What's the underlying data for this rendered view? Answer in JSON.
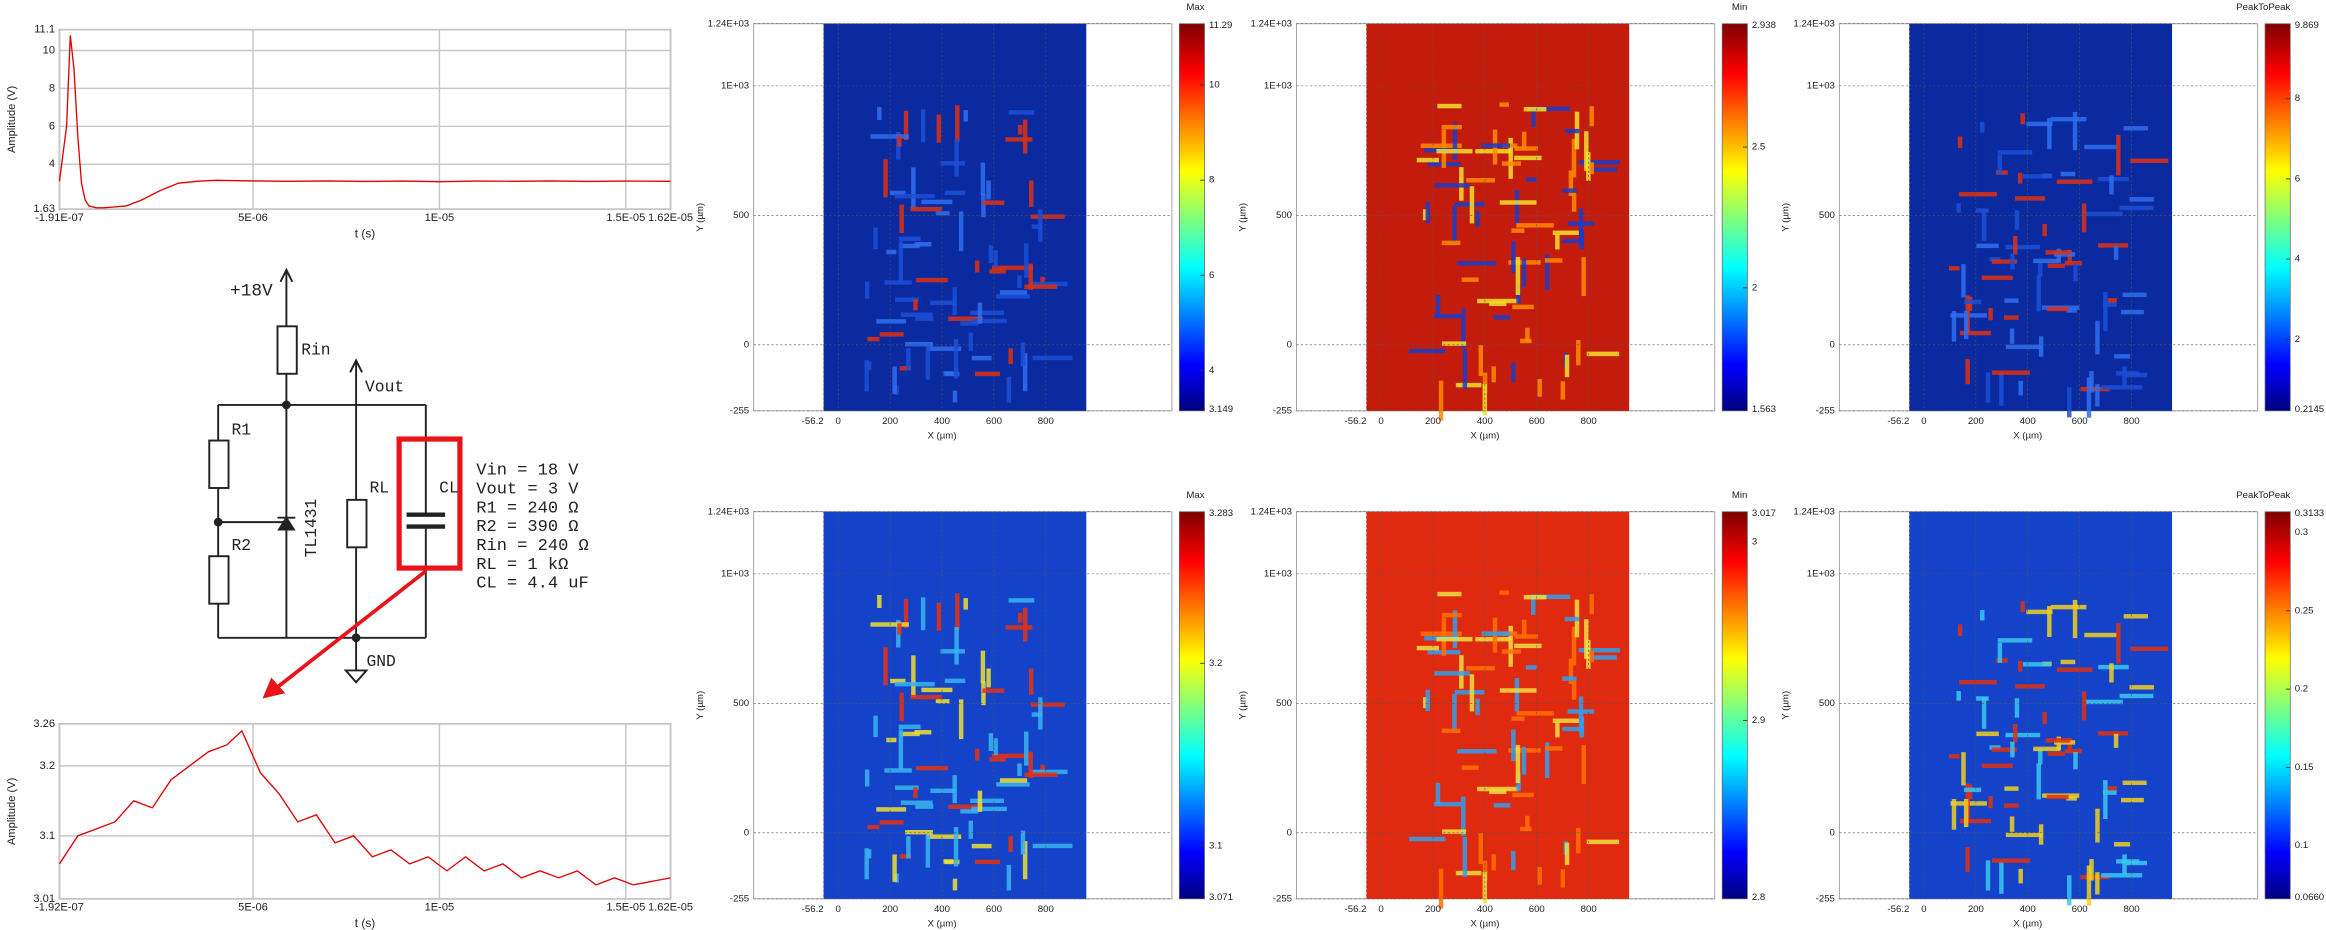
{
  "chart_data": [
    {
      "type": "line",
      "color": "#e00000",
      "grid": true,
      "xlabel": "t (s)",
      "ylabel": "Amplitude (V)",
      "x": [
        -1.91e-07,
        0,
        1e-07,
        2e-07,
        3e-07,
        4e-07,
        5e-07,
        6e-07,
        8e-07,
        1e-06,
        1.3e-06,
        1.6e-06,
        2e-06,
        2.5e-06,
        3e-06,
        3.5e-06,
        4e-06,
        5e-06,
        6e-06,
        7e-06,
        8e-06,
        9e-06,
        1e-05,
        1.1e-05,
        1.2e-05,
        1.3e-05,
        1.4e-05,
        1.5e-05,
        1.62e-05
      ],
      "values": [
        3.1,
        6,
        10.8,
        9,
        5.5,
        3,
        2.1,
        1.8,
        1.7,
        1.7,
        1.75,
        1.8,
        2.1,
        2.6,
        3.0,
        3.1,
        3.15,
        3.12,
        3.1,
        3.12,
        3.09,
        3.11,
        3.08,
        3.11,
        3.1,
        3.12,
        3.09,
        3.11,
        3.1
      ],
      "xlim": [
        -1.91e-07,
        1.62e-05
      ],
      "ylim": [
        1.63,
        11.1
      ],
      "xticks": [
        {
          "value": -1.91e-07,
          "label": "-1.91E-07"
        },
        {
          "value": 5e-06,
          "label": "5E-06"
        },
        {
          "value": 1e-05,
          "label": "1E-05"
        },
        {
          "value": 1.5e-05,
          "label": "1.5E-05"
        },
        {
          "value": 1.62e-05,
          "label": "1.62E-05"
        }
      ],
      "yticks": [
        1.63,
        4,
        6,
        8,
        10,
        11.1
      ]
    },
    {
      "type": "line",
      "color": "#e00000",
      "grid": true,
      "xlabel": "t (s)",
      "ylabel": "Amplitude (V)",
      "x": [
        -1.92e-07,
        3e-07,
        8e-07,
        1.3e-06,
        1.8e-06,
        2.3e-06,
        2.8e-06,
        3.3e-06,
        3.8e-06,
        4.3e-06,
        4.7e-06,
        5.2e-06,
        5.7e-06,
        6.2e-06,
        6.7e-06,
        7.2e-06,
        7.7e-06,
        8.2e-06,
        8.7e-06,
        9.2e-06,
        9.7e-06,
        1.02e-05,
        1.07e-05,
        1.12e-05,
        1.17e-05,
        1.22e-05,
        1.27e-05,
        1.32e-05,
        1.37e-05,
        1.42e-05,
        1.47e-05,
        1.52e-05,
        1.62e-05
      ],
      "values": [
        3.06,
        3.1,
        3.11,
        3.12,
        3.15,
        3.14,
        3.18,
        3.2,
        3.22,
        3.23,
        3.25,
        3.19,
        3.16,
        3.12,
        3.13,
        3.09,
        3.1,
        3.07,
        3.08,
        3.06,
        3.07,
        3.05,
        3.07,
        3.05,
        3.06,
        3.04,
        3.05,
        3.04,
        3.05,
        3.03,
        3.04,
        3.03,
        3.04
      ],
      "xlim": [
        -1.92e-07,
        1.62e-05
      ],
      "ylim": [
        3.01,
        3.26
      ],
      "xticks": [
        {
          "value": -1.92e-07,
          "label": "-1.92E-07"
        },
        {
          "value": 5e-06,
          "label": "5E-06"
        },
        {
          "value": 1e-05,
          "label": "1E-05"
        },
        {
          "value": 1.5e-05,
          "label": "1.5E-05"
        },
        {
          "value": 1.62e-05,
          "label": "1.62E-05"
        }
      ],
      "yticks": [
        3.01,
        3.1,
        3.2,
        3.26
      ]
    },
    {
      "type": "heatmap",
      "colorbar_title": "Max",
      "xlabel": "X (µm)",
      "ylabel": "Y (µm)",
      "grid": true,
      "image_color": "#0b2aa0",
      "pattern_colors": [
        "#1c4fd6",
        "#2f6ff0",
        "#e03010"
      ],
      "xlim": [
        -326,
        1286
      ],
      "ylim": [
        -255,
        1240
      ],
      "xticks": [
        -56.2,
        0,
        200,
        400,
        600,
        800
      ],
      "yticks": [
        -255,
        0,
        500,
        {
          "value": 1000,
          "label": "1E+03"
        },
        {
          "value": 1240,
          "label": "1.24E+03"
        }
      ],
      "clim": [
        3.149,
        11.29
      ],
      "cticks": [
        4,
        6,
        8,
        10
      ]
    },
    {
      "type": "heatmap",
      "colorbar_title": "Min",
      "xlabel": "X (µm)",
      "ylabel": "Y (µm)",
      "grid": true,
      "image_color": "#c41c0c",
      "pattern_colors": [
        "#ff8a00",
        "#f2e22a",
        "#1a3cc8"
      ],
      "xlim": [
        -326,
        1286
      ],
      "ylim": [
        -255,
        1240
      ],
      "xticks": [
        -56.2,
        0,
        200,
        400,
        600,
        800
      ],
      "yticks": [
        -255,
        0,
        500,
        {
          "value": 1000,
          "label": "1E+03"
        },
        {
          "value": 1240,
          "label": "1.24E+03"
        }
      ],
      "clim": [
        1.563,
        2.938
      ],
      "cticks": [
        2,
        2.5
      ]
    },
    {
      "type": "heatmap",
      "colorbar_title": "PeakToPeak",
      "xlabel": "X (µm)",
      "ylabel": "Y (µm)",
      "grid": true,
      "image_color": "#0b2aa0",
      "pattern_colors": [
        "#1c4fd6",
        "#2f6ff0",
        "#e03010"
      ],
      "xlim": [
        -326,
        1286
      ],
      "ylim": [
        -255,
        1240
      ],
      "xticks": [
        -56.2,
        0,
        200,
        400,
        600,
        800
      ],
      "yticks": [
        -255,
        0,
        500,
        {
          "value": 1000,
          "label": "1E+03"
        },
        {
          "value": 1240,
          "label": "1.24E+03"
        }
      ],
      "clim": [
        0.2145,
        9.869
      ],
      "cticks": [
        2,
        4,
        6,
        8
      ]
    },
    {
      "type": "heatmap",
      "colorbar_title": "Max",
      "xlabel": "X (µm)",
      "ylabel": "Y (µm)",
      "grid": true,
      "image_color": "#1442c8",
      "pattern_colors": [
        "#38b4f0",
        "#f0e030",
        "#e83010"
      ],
      "xlim": [
        -326,
        1286
      ],
      "ylim": [
        -255,
        1240
      ],
      "xticks": [
        -56.2,
        0,
        200,
        400,
        600,
        800
      ],
      "yticks": [
        -255,
        0,
        500,
        {
          "value": 1000,
          "label": "1E+03"
        },
        {
          "value": 1240,
          "label": "1.24E+03"
        }
      ],
      "clim": [
        3.071,
        3.283
      ],
      "cticks": [
        3.1,
        3.2
      ]
    },
    {
      "type": "heatmap",
      "colorbar_title": "Min",
      "xlabel": "X (µm)",
      "ylabel": "Y (µm)",
      "grid": true,
      "image_color": "#e02a10",
      "pattern_colors": [
        "#ff7000",
        "#f0e040",
        "#30a0f0"
      ],
      "xlim": [
        -326,
        1286
      ],
      "ylim": [
        -255,
        1240
      ],
      "xticks": [
        -56.2,
        0,
        200,
        400,
        600,
        800
      ],
      "yticks": [
        -255,
        0,
        500,
        {
          "value": 1000,
          "label": "1E+03"
        },
        {
          "value": 1240,
          "label": "1.24E+03"
        }
      ],
      "clim": [
        2.8,
        3.017
      ],
      "cticks": [
        2.9,
        3
      ]
    },
    {
      "type": "heatmap",
      "colorbar_title": "PeakToPeak",
      "xlabel": "X (µm)",
      "ylabel": "Y (µm)",
      "grid": true,
      "image_color": "#1442c8",
      "pattern_colors": [
        "#38c8f0",
        "#f0d020",
        "#e03010"
      ],
      "xlim": [
        -326,
        1286
      ],
      "ylim": [
        -255,
        1240
      ],
      "xticks": [
        -56.2,
        0,
        200,
        400,
        600,
        800
      ],
      "yticks": [
        -255,
        0,
        500,
        {
          "value": 1000,
          "label": "1E+03"
        },
        {
          "value": 1240,
          "label": "1.24E+03"
        }
      ],
      "clim": [
        {
          "value": 0.066,
          "label": "0.0660"
        },
        0.3133
      ],
      "cticks": [
        0.1,
        0.15,
        0.2,
        0.25,
        0.3
      ]
    }
  ],
  "diagram": {
    "supply": "+18V",
    "rin": "Rin",
    "vout": "Vout",
    "r1": "R1",
    "r2": "R2",
    "rl": "RL",
    "cl": "CL",
    "ic": "TL1431",
    "gnd": "GND",
    "specs": [
      "Vin = 18 V",
      "Vout = 3 V",
      "R1 = 240 Ω",
      "R2 = 390 Ω",
      "Rin = 240 Ω",
      "RL = 1 kΩ",
      "CL = 4.4 uF"
    ]
  }
}
